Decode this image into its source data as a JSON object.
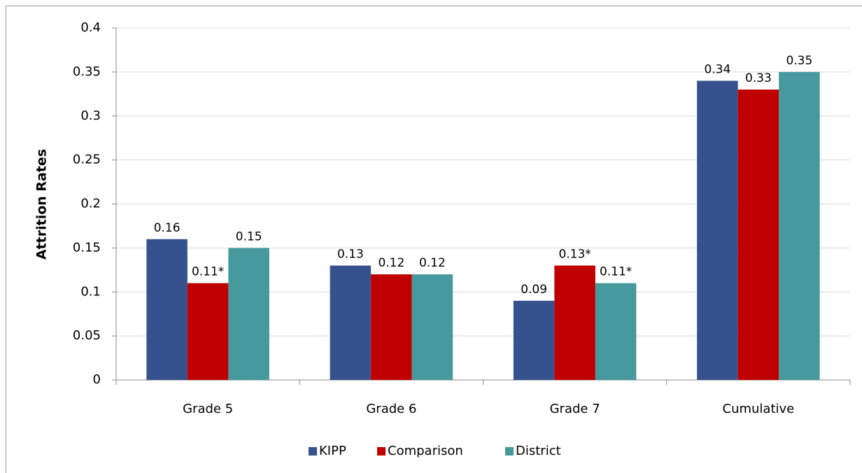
{
  "chart_data": {
    "type": "bar",
    "y_label": "Attrition Rates",
    "categories": [
      "Grade 5",
      "Grade 6",
      "Grade 7",
      "Cumulative"
    ],
    "series": [
      {
        "name": "KIPP",
        "color": "#35528f",
        "values": [
          0.16,
          0.13,
          0.09,
          0.34
        ],
        "value_labels": [
          "0.16",
          "0.13",
          "0.09",
          "0.34"
        ]
      },
      {
        "name": "Comparison",
        "color": "#c00000",
        "values": [
          0.11,
          0.12,
          0.13,
          0.33
        ],
        "value_labels": [
          "0.11*",
          "0.12",
          "0.13*",
          "0.33"
        ]
      },
      {
        "name": "District",
        "color": "#46999c",
        "values": [
          0.15,
          0.12,
          0.11,
          0.35
        ],
        "value_labels": [
          "0.15",
          "0.12",
          "0.11*",
          "0.35"
        ]
      }
    ],
    "ylim": [
      0,
      0.4
    ],
    "yticks": [
      0,
      0.05,
      0.1,
      0.15,
      0.2,
      0.25,
      0.3,
      0.35,
      0.4
    ],
    "grid": true,
    "legend": "bottom"
  }
}
